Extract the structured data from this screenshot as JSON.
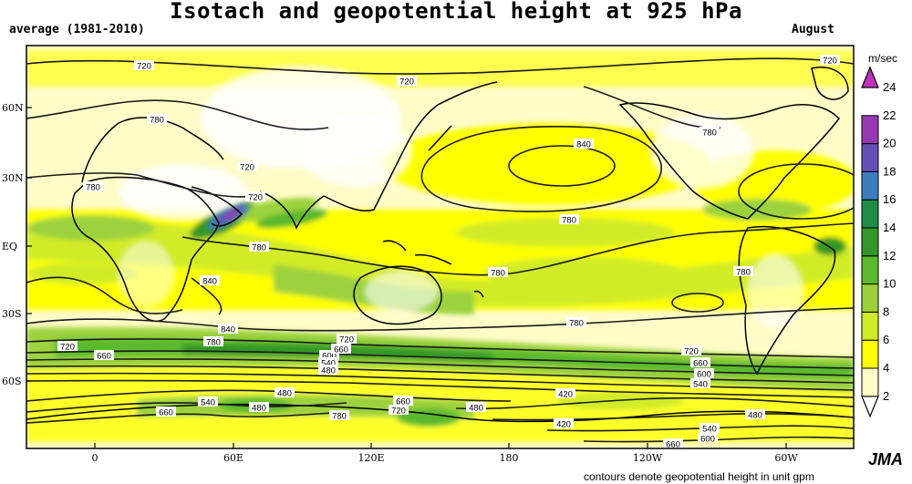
{
  "title": "Isotach and geopotential height at 925 hPa",
  "subtitle_left": "average (1981-2010)",
  "subtitle_right": "August",
  "footer": "contours denote geopotential height in unit gpm",
  "logo": "JMA",
  "colorbar": {
    "unit": "m/sec",
    "ticks": [
      "2",
      "4",
      "6",
      "8",
      "10",
      "12",
      "14",
      "16",
      "18",
      "20",
      "22",
      "24"
    ],
    "colors": [
      "#ffffff",
      "#fffcc8",
      "#ffff00",
      "#d2eb28",
      "#9bd23c",
      "#5ab92d",
      "#329628",
      "#1e8c46",
      "#3c7dbe",
      "#6450b4",
      "#9637b4",
      "#be32be"
    ]
  },
  "axes": {
    "lat_labels": [
      "60N",
      "30N",
      "EQ",
      "30S",
      "60S"
    ],
    "lon_labels": [
      "0",
      "60E",
      "120E",
      "180",
      "120W",
      "60W"
    ]
  },
  "contour_labels": [
    "720",
    "720",
    "720",
    "780",
    "720",
    "780",
    "720",
    "840",
    "780",
    "780",
    "780",
    "840",
    "780",
    "780",
    "840",
    "780",
    "720",
    "780",
    "720",
    "660",
    "600",
    "540",
    "480",
    "660",
    "720",
    "660",
    "600",
    "540",
    "480",
    "420",
    "540",
    "480",
    "660",
    "780",
    "720",
    "660",
    "480",
    "420",
    "480",
    "540",
    "600",
    "660"
  ]
}
